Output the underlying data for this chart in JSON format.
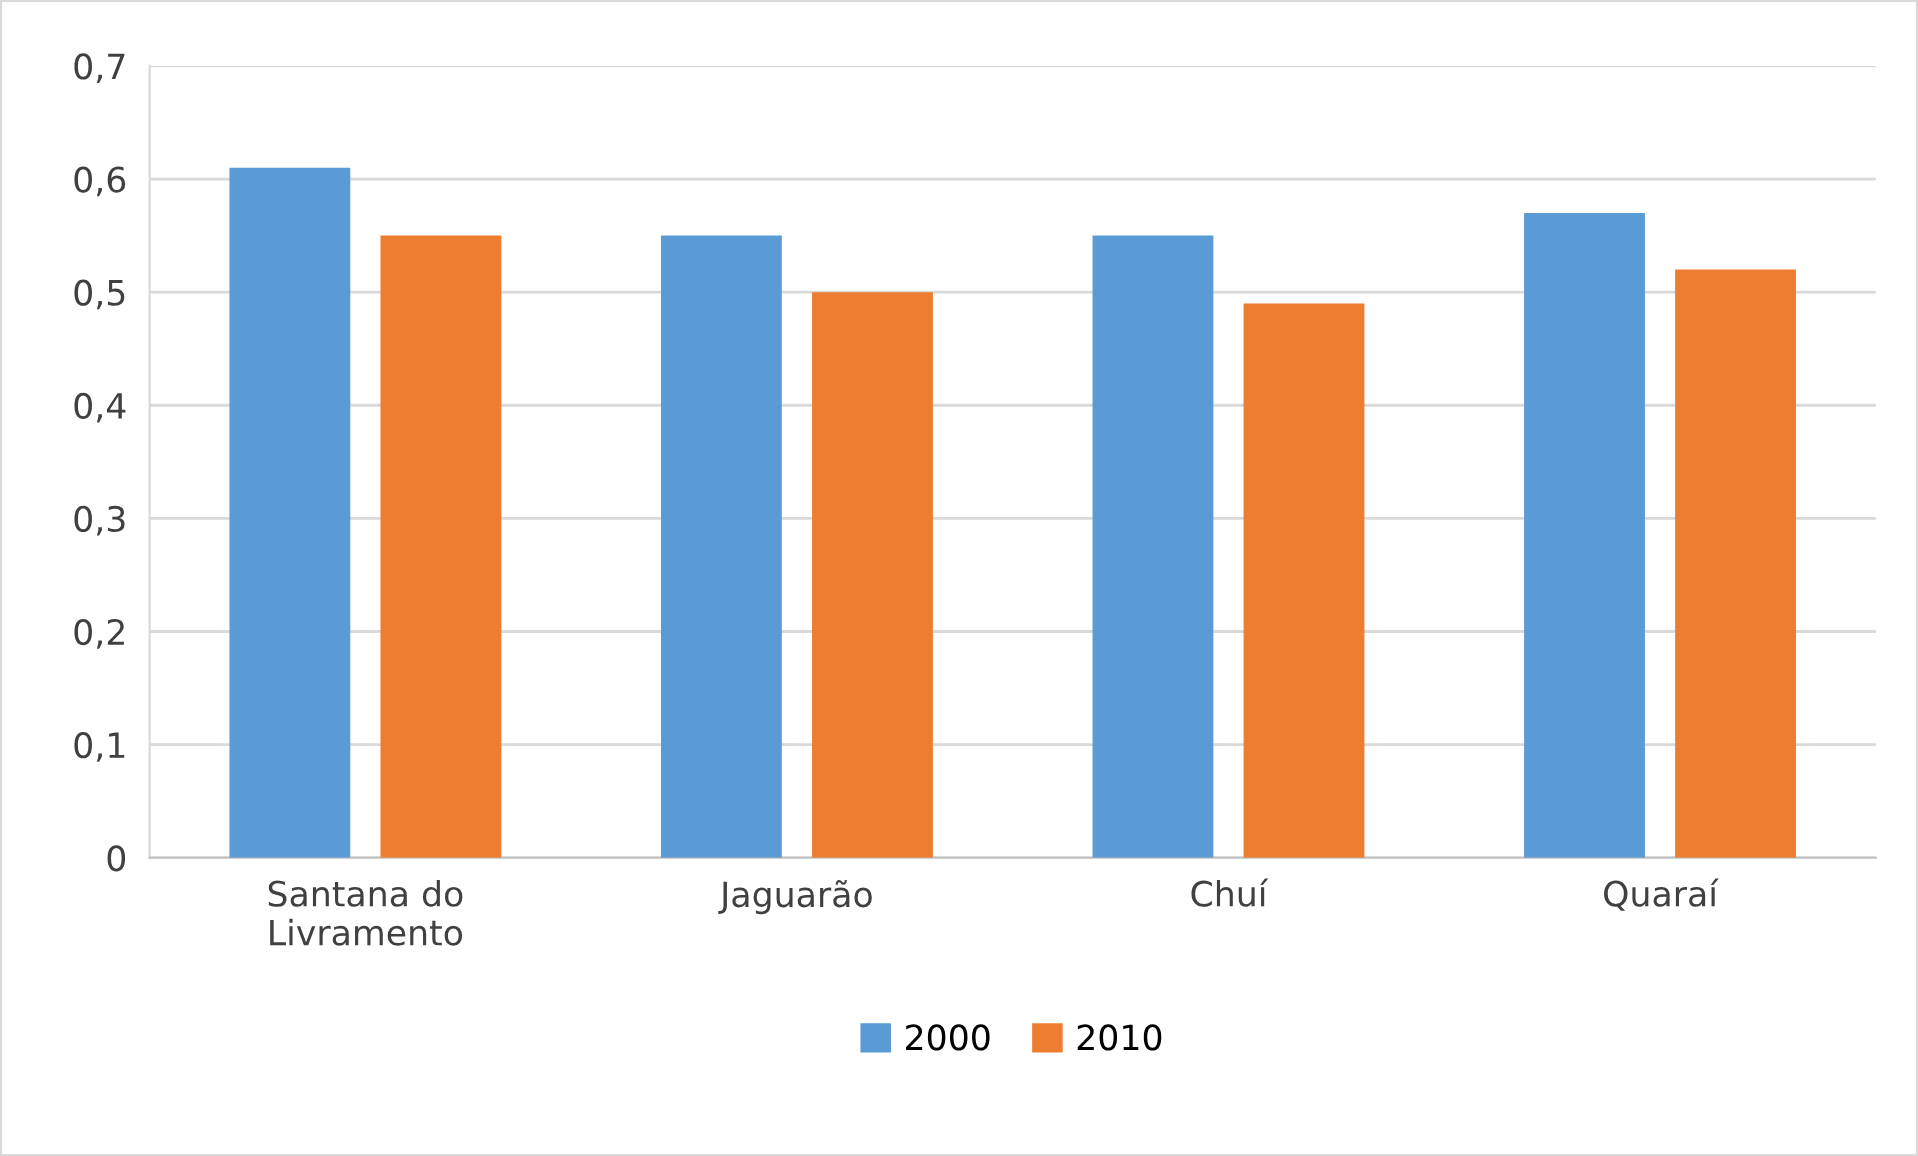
{
  "chart_data": {
    "type": "bar",
    "categories": [
      "Santana do\nLivramento",
      "Jaguarão",
      "Chuí",
      "Quaraí"
    ],
    "series": [
      {
        "name": "2000",
        "color": "#5b9bd5",
        "values": [
          0.61,
          0.55,
          0.55,
          0.57
        ]
      },
      {
        "name": "2010",
        "color": "#ed7d31",
        "values": [
          0.55,
          0.5,
          0.49,
          0.52
        ]
      }
    ],
    "ylim": [
      0,
      0.7
    ],
    "yticks": [
      0,
      {
        "value": 0.1,
        "label": "0,1"
      },
      {
        "value": 0.2,
        "label": "0,2"
      },
      {
        "value": 0.3,
        "label": "0,3"
      },
      {
        "value": 0.4,
        "label": "0,4"
      },
      {
        "value": 0.5,
        "label": "0,5"
      },
      {
        "value": 0.6,
        "label": "0,6"
      },
      {
        "value": 0.7,
        "label": "0,7"
      }
    ],
    "grid": "y",
    "legend": "bottom"
  }
}
